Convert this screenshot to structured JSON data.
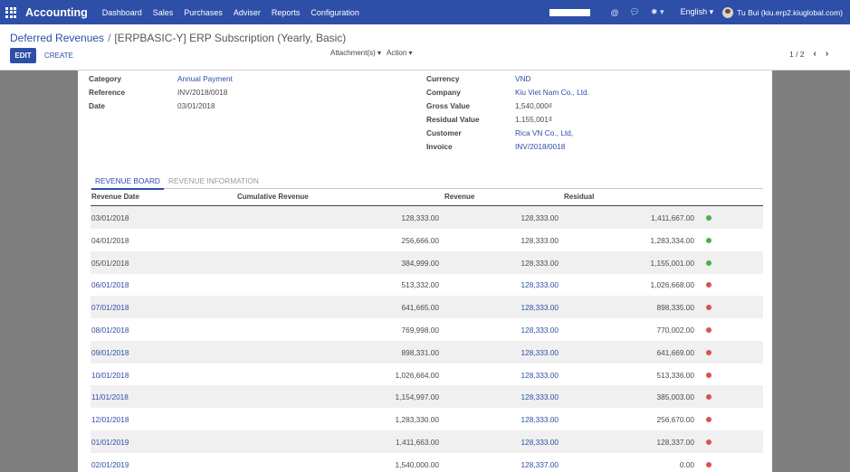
{
  "navbar": {
    "brand": "Accounting",
    "menu": [
      "Dashboard",
      "Sales",
      "Purchases",
      "Adviser",
      "Reports",
      "Configuration"
    ],
    "language": "English",
    "user": "Tu Bui (kiu.erp2.kiuglobal.com)"
  },
  "breadcrumb": {
    "parent": "Deferred Revenues",
    "separator": "/",
    "current": "[ERPBASIC-Y] ERP Subscription (Yearly, Basic)"
  },
  "buttons": {
    "edit": "EDIT",
    "create": "CREATE",
    "attachments": "Attachment(s) ▾",
    "action": "Action ▾"
  },
  "pager": {
    "text": "1 / 2"
  },
  "form": {
    "left": [
      {
        "label": "Category",
        "value": "Annual Payment",
        "link": true
      },
      {
        "label": "Reference",
        "value": "INV/2018/0018",
        "link": false
      },
      {
        "label": "Date",
        "value": "03/01/2018",
        "link": false
      }
    ],
    "right": [
      {
        "label": "Currency",
        "value": "VND",
        "link": true
      },
      {
        "label": "Company",
        "value": "Kiu Viet Nam Co., Ltd.",
        "link": true
      },
      {
        "label": "Gross Value",
        "value": "1,540,000₫",
        "link": false
      },
      {
        "label": "Residual Value",
        "value": "1,155,001₫",
        "link": false
      },
      {
        "label": "Customer",
        "value": "Rica VN Co., Ltd,",
        "link": true
      },
      {
        "label": "Invoice",
        "value": "INV/2018/0018",
        "link": true
      }
    ]
  },
  "tabs": {
    "active": "REVENUE BOARD",
    "inactive": "REVENUE INFORMATION"
  },
  "table": {
    "headers": {
      "date": "Revenue Date",
      "cumulative": "Cumulative Revenue",
      "revenue": "Revenue",
      "residual": "Residual"
    },
    "rows": [
      {
        "date": "03/01/2018",
        "cumulative": "128,333.00",
        "revenue": "128,333.00",
        "residual": "1,411,667.00",
        "status": "green"
      },
      {
        "date": "04/01/2018",
        "cumulative": "256,666.00",
        "revenue": "128,333.00",
        "residual": "1,283,334.00",
        "status": "green"
      },
      {
        "date": "05/01/2018",
        "cumulative": "384,999.00",
        "revenue": "128,333.00",
        "residual": "1,155,001.00",
        "status": "green"
      },
      {
        "date": "06/01/2018",
        "cumulative": "513,332.00",
        "revenue": "128,333.00",
        "residual": "1,026,668.00",
        "status": "red"
      },
      {
        "date": "07/01/2018",
        "cumulative": "641,665.00",
        "revenue": "128,333.00",
        "residual": "898,335.00",
        "status": "red"
      },
      {
        "date": "08/01/2018",
        "cumulative": "769,998.00",
        "revenue": "128,333.00",
        "residual": "770,002.00",
        "status": "red"
      },
      {
        "date": "09/01/2018",
        "cumulative": "898,331.00",
        "revenue": "128,333.00",
        "residual": "641,669.00",
        "status": "red"
      },
      {
        "date": "10/01/2018",
        "cumulative": "1,026,664.00",
        "revenue": "128,333.00",
        "residual": "513,336.00",
        "status": "red"
      },
      {
        "date": "11/01/2018",
        "cumulative": "1,154,997.00",
        "revenue": "128,333.00",
        "residual": "385,003.00",
        "status": "red"
      },
      {
        "date": "12/01/2018",
        "cumulative": "1,283,330.00",
        "revenue": "128,333.00",
        "residual": "256,670.00",
        "status": "red"
      },
      {
        "date": "01/01/2019",
        "cumulative": "1,411,663.00",
        "revenue": "128,333.00",
        "residual": "128,337.00",
        "status": "red"
      },
      {
        "date": "02/01/2019",
        "cumulative": "1,540,000.00",
        "revenue": "128,337.00",
        "residual": "0.00",
        "status": "red"
      }
    ]
  }
}
